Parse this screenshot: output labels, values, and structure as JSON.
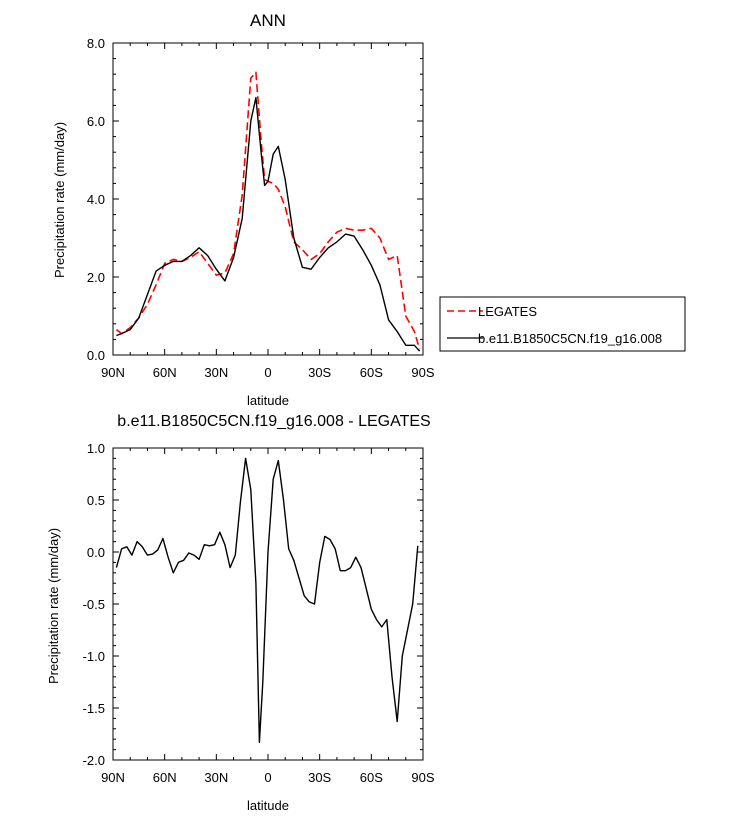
{
  "chart_data": [
    {
      "type": "line",
      "title": "ANN",
      "xlabel": "latitude",
      "ylabel": "Precipitation rate (mm/day)",
      "xlim": [
        90,
        -90
      ],
      "ylim": [
        0,
        8
      ],
      "x_ticks": [
        90,
        60,
        30,
        0,
        -30,
        -60,
        -90
      ],
      "x_tick_labels": [
        "90N",
        "60N",
        "30N",
        "0",
        "30S",
        "60S",
        "90S"
      ],
      "y_ticks": [
        0,
        2,
        4,
        6,
        8
      ],
      "y_tick_labels": [
        "0.0",
        "2.0",
        "4.0",
        "6.0",
        "8.0"
      ],
      "grid": false,
      "legend_position": "right",
      "series": [
        {
          "name": "LEGATES",
          "color": "#ff0000",
          "dash": "dashed",
          "x": [
            88,
            85,
            80,
            75,
            70,
            65,
            60,
            55,
            50,
            45,
            40,
            35,
            30,
            25,
            20,
            15,
            10,
            7,
            4,
            2,
            0,
            -3,
            -6,
            -10,
            -15,
            -20,
            -25,
            -30,
            -35,
            -40,
            -45,
            -50,
            -55,
            -60,
            -65,
            -70,
            -75,
            -80,
            -85,
            -88
          ],
          "y": [
            0.65,
            0.55,
            0.7,
            0.95,
            1.3,
            1.8,
            2.35,
            2.45,
            2.4,
            2.5,
            2.65,
            2.35,
            2.05,
            2.1,
            2.6,
            4.1,
            7.1,
            7.25,
            5.5,
            4.5,
            4.45,
            4.4,
            4.25,
            3.8,
            2.9,
            2.7,
            2.45,
            2.6,
            2.9,
            3.15,
            3.25,
            3.2,
            3.2,
            3.25,
            3.0,
            2.45,
            2.55,
            1.0,
            0.6,
            0.15
          ]
        },
        {
          "name": "b.e11.B1850C5CN.f19_g16.008",
          "color": "#000000",
          "dash": "solid",
          "x": [
            88,
            85,
            80,
            75,
            70,
            65,
            60,
            55,
            50,
            45,
            40,
            35,
            30,
            25,
            20,
            15,
            10,
            7,
            4,
            2,
            0,
            -3,
            -6,
            -10,
            -15,
            -20,
            -25,
            -30,
            -35,
            -40,
            -45,
            -50,
            -55,
            -60,
            -65,
            -70,
            -75,
            -80,
            -85,
            -88
          ],
          "y": [
            0.5,
            0.55,
            0.65,
            0.95,
            1.55,
            2.15,
            2.3,
            2.4,
            2.4,
            2.55,
            2.75,
            2.55,
            2.2,
            1.9,
            2.5,
            3.5,
            6.0,
            6.6,
            5.2,
            4.35,
            4.45,
            5.15,
            5.35,
            4.5,
            3.0,
            2.25,
            2.2,
            2.5,
            2.75,
            2.9,
            3.1,
            3.05,
            2.7,
            2.3,
            1.8,
            0.9,
            0.6,
            0.25,
            0.25,
            0.1
          ]
        }
      ]
    },
    {
      "type": "line",
      "title": "b.e11.B1850C5CN.f19_g16.008 - LEGATES",
      "xlabel": "latitude",
      "ylabel": "Precipitation rate (mm/day)",
      "xlim": [
        90,
        -90
      ],
      "ylim": [
        -2,
        1
      ],
      "x_ticks": [
        90,
        60,
        30,
        0,
        -30,
        -60,
        -90
      ],
      "x_tick_labels": [
        "90N",
        "60N",
        "30N",
        "0",
        "30S",
        "60S",
        "90S"
      ],
      "y_ticks": [
        1,
        0.5,
        0,
        -0.5,
        -1,
        -1.5,
        -2
      ],
      "y_tick_labels": [
        "1.0",
        "0.5",
        "0.0",
        "-0.5",
        "-1.0",
        "-1.5",
        "-2.0"
      ],
      "grid": false,
      "series": [
        {
          "name": "",
          "color": "#000000",
          "dash": "solid",
          "x": [
            88,
            85,
            82,
            79,
            76,
            73,
            70,
            67,
            64,
            61,
            58,
            55,
            52,
            49,
            46,
            43,
            40,
            37,
            34,
            31,
            28,
            25,
            22,
            19,
            16,
            13,
            10,
            7,
            5,
            3,
            0,
            -3,
            -6,
            -9,
            -12,
            -15,
            -18,
            -21,
            -24,
            -27,
            -30,
            -33,
            -36,
            -39,
            -42,
            -45,
            -48,
            -51,
            -54,
            -57,
            -60,
            -63,
            -66,
            -69,
            -72,
            -75,
            -78,
            -81,
            -84,
            -87
          ],
          "y": [
            -0.15,
            0.03,
            0.05,
            -0.03,
            0.1,
            0.05,
            -0.03,
            -0.02,
            0.02,
            0.13,
            -0.05,
            -0.2,
            -0.1,
            -0.08,
            -0.01,
            -0.03,
            -0.07,
            0.07,
            0.06,
            0.07,
            0.19,
            0.07,
            -0.15,
            -0.03,
            0.48,
            0.9,
            0.6,
            -0.3,
            -1.83,
            -1.25,
            0.0,
            0.7,
            0.88,
            0.5,
            0.03,
            -0.08,
            -0.25,
            -0.42,
            -0.48,
            -0.5,
            -0.1,
            0.15,
            0.12,
            0.03,
            -0.18,
            -0.18,
            -0.15,
            -0.05,
            -0.15,
            -0.35,
            -0.55,
            -0.65,
            -0.72,
            -0.65,
            -1.2,
            -1.63,
            -1.0,
            -0.75,
            -0.5,
            0.06
          ]
        }
      ]
    }
  ]
}
